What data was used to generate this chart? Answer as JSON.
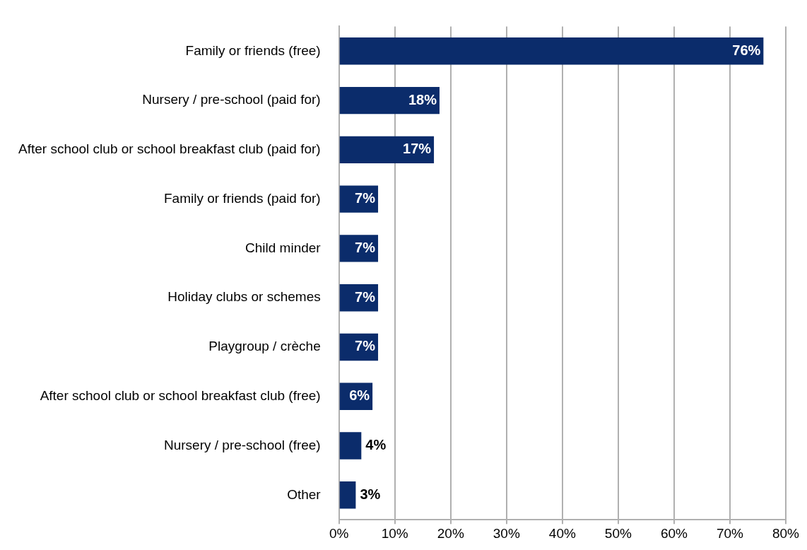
{
  "chart_data": {
    "type": "bar",
    "orientation": "horizontal",
    "categories": [
      "Family or friends (free)",
      "Nursery / pre-school (paid for)",
      "After school club or school breakfast club (paid for)",
      "Family or friends (paid for)",
      "Child minder",
      "Holiday clubs or schemes",
      "Playgroup / crèche",
      "After school club or school breakfast club (free)",
      "Nursery / pre-school (free)",
      "Other"
    ],
    "values": [
      76,
      18,
      17,
      7,
      7,
      7,
      7,
      6,
      4,
      3
    ],
    "value_labels": [
      "76%",
      "18%",
      "17%",
      "7%",
      "7%",
      "7%",
      "7%",
      "6%",
      "4%",
      "3%"
    ],
    "color": "#0b2c6b",
    "xlim": [
      0,
      80
    ],
    "xticks": [
      {
        "value": 0,
        "label": "0%"
      },
      {
        "value": 10,
        "label": "10%"
      },
      {
        "value": 20,
        "label": "20%"
      },
      {
        "value": 30,
        "label": "30%"
      },
      {
        "value": 40,
        "label": "40%"
      },
      {
        "value": 50,
        "label": "50%"
      },
      {
        "value": 60,
        "label": "60%"
      },
      {
        "value": 70,
        "label": "70%"
      },
      {
        "value": 80,
        "label": "80%"
      }
    ],
    "grid": "x"
  }
}
